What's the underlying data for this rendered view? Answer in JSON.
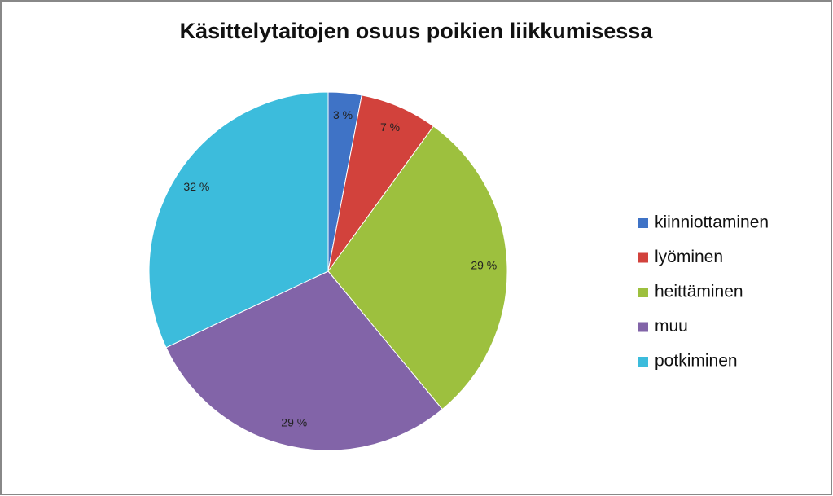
{
  "chart_data": {
    "type": "pie",
    "title": "Käsittelytaitojen osuus poikien liikkumisessa",
    "categories": [
      "kiinniottaminen",
      "lyöminen",
      "heittäminen",
      "muu",
      "potkiminen"
    ],
    "values": [
      3,
      7,
      29,
      29,
      32
    ],
    "value_labels": [
      "3 %",
      "7 %",
      "29 %",
      "29 %",
      "32 %"
    ],
    "colors": [
      "#3f73c6",
      "#d2423c",
      "#9dc03e",
      "#8264a8",
      "#3cbcdc"
    ],
    "legend": "right"
  }
}
